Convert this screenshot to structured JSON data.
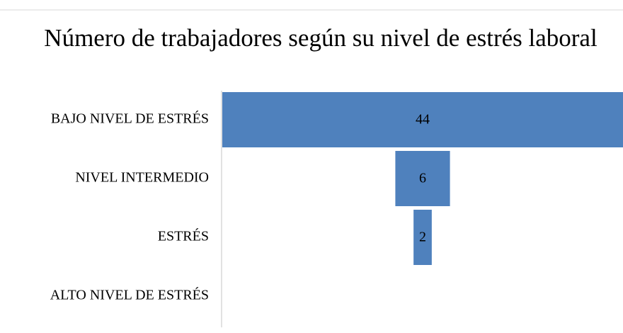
{
  "chart_data": {
    "type": "funnel",
    "title": "Número de trabajadores según su nivel de estrés laboral",
    "categories": [
      "BAJO NIVEL DE ESTRÉS",
      "NIVEL INTERMEDIO",
      "ESTRÉS",
      "ALTO NIVEL DE ESTRÉS"
    ],
    "values": [
      44,
      6,
      2,
      null
    ],
    "color": "#4f81bd"
  }
}
